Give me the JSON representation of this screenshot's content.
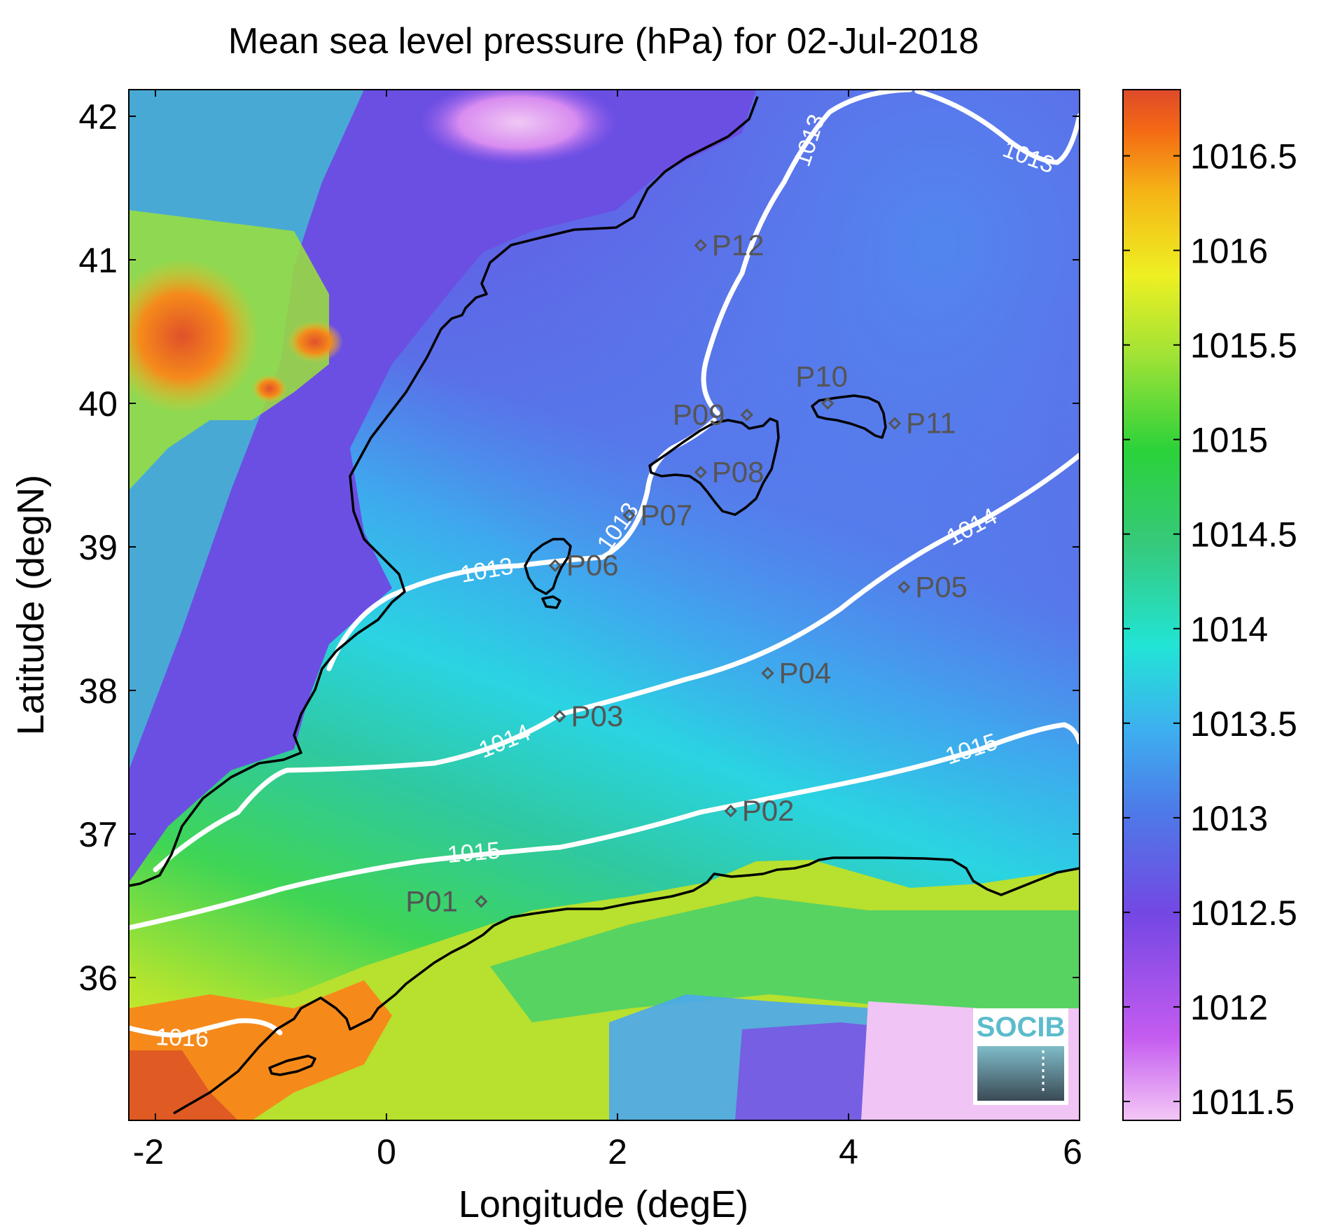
{
  "title": "Mean sea level pressure (hPa) for 02-Jul-2018",
  "xlabel": "Longitude (degE)",
  "ylabel": "Latitude (degN)",
  "logo_text": "SOCIB",
  "x_ticks": [
    "-2",
    "0",
    "2",
    "4",
    "6"
  ],
  "y_ticks": [
    "42",
    "41",
    "40",
    "39",
    "38",
    "37",
    "36"
  ],
  "colorbar": {
    "ticks": [
      "1016.5",
      "1016",
      "1015.5",
      "1015",
      "1014.5",
      "1014",
      "1013.5",
      "1013",
      "1012.5",
      "1012",
      "1011.5"
    ],
    "range": [
      1011.4,
      1016.85
    ]
  },
  "contour_labels": [
    "1013",
    "1013",
    "1013",
    "1013",
    "1014",
    "1014",
    "1015",
    "1015",
    "1016"
  ],
  "stations": [
    {
      "name": "P01",
      "lon": 0.82,
      "lat": 36.53
    },
    {
      "name": "P02",
      "lon": 2.98,
      "lat": 37.16
    },
    {
      "name": "P03",
      "lon": 1.5,
      "lat": 37.82
    },
    {
      "name": "P04",
      "lon": 3.3,
      "lat": 38.12
    },
    {
      "name": "P05",
      "lon": 4.48,
      "lat": 38.72
    },
    {
      "name": "P06",
      "lon": 1.46,
      "lat": 38.87
    },
    {
      "name": "P07",
      "lon": 2.1,
      "lat": 39.22
    },
    {
      "name": "P08",
      "lon": 2.72,
      "lat": 39.52
    },
    {
      "name": "P09",
      "lon": 3.12,
      "lat": 39.92
    },
    {
      "name": "P10",
      "lon": 3.82,
      "lat": 40.0
    },
    {
      "name": "P11",
      "lon": 4.4,
      "lat": 39.86
    },
    {
      "name": "P12",
      "lon": 2.72,
      "lat": 41.1
    }
  ],
  "colors": {
    "contour": "#ffffff",
    "coastline": "#000000",
    "station_marker": "#555555",
    "logo_text": "#5bbccc"
  }
}
